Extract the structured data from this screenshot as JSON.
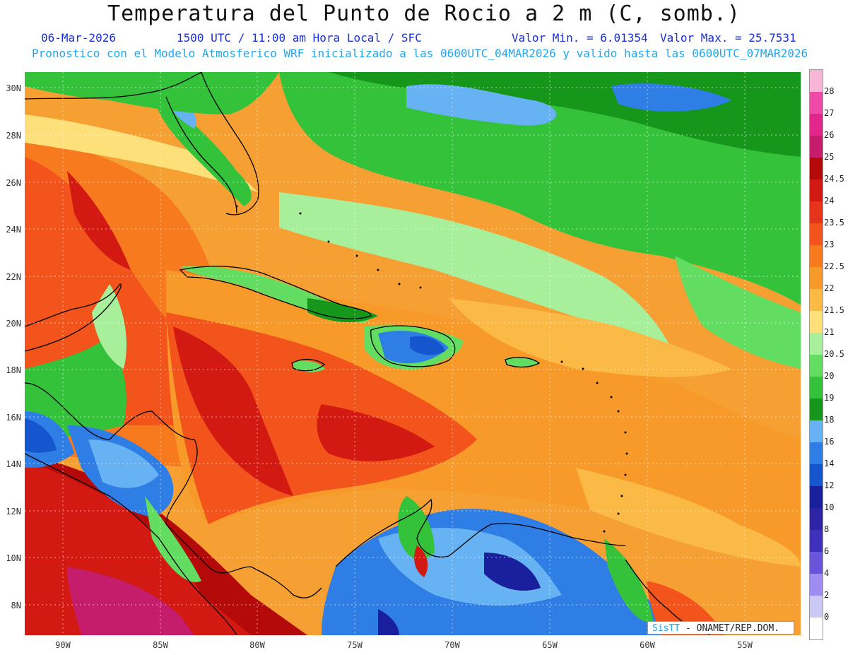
{
  "header": {
    "title": "Temperatura del Punto de Rocio a 2 m (C, somb.)",
    "date": "06-Mar-2026",
    "time_info": "1500 UTC / 11:00 am Hora Local / SFC",
    "valmin": "Valor Min. = 6.01354",
    "valmax": "Valor Max. = 25.7531",
    "model_info": "Pronostico con el Modelo Atmosferico WRF inicializado a las 0600UTC_04MAR2026 y valido hasta las  0600UTC_07MAR2026"
  },
  "axes": {
    "lat_labels": [
      "30N",
      "28N",
      "26N",
      "24N",
      "22N",
      "20N",
      "18N",
      "16N",
      "14N",
      "12N",
      "10N",
      "8N"
    ],
    "lon_labels": [
      "90W",
      "85W",
      "80W",
      "75W",
      "70W",
      "65W",
      "60W",
      "55W"
    ]
  },
  "colorbar": {
    "labels": [
      "28",
      "27",
      "26",
      "25",
      "24.5",
      "24",
      "23.5",
      "23",
      "22.5",
      "22",
      "21.5",
      "21",
      "20.5",
      "20",
      "19",
      "18",
      "16",
      "14",
      "12",
      "10",
      "8",
      "6",
      "4",
      "2",
      "0"
    ],
    "colors": [
      "#f7b6d6",
      "#ee4aa8",
      "#e3268a",
      "#c51c6b",
      "#b40a0a",
      "#d21a12",
      "#e6341a",
      "#f2541c",
      "#f77a1f",
      "#f89a2a",
      "#fbba45",
      "#fde07a",
      "#a7ef9a",
      "#62dd62",
      "#34c23a",
      "#16971c",
      "#66b2f2",
      "#2f7ee6",
      "#1556cf",
      "#1a1f9e",
      "#2d24a6",
      "#3f31bb",
      "#6a55d8",
      "#9e8cf0",
      "#ccc8f6",
      "#ffffff"
    ]
  },
  "map": {
    "region": "Caribbean / Gulf of Mexico / Central America"
  },
  "credit": {
    "logo": "SisTT",
    "text": " - ONAMET/REP.DOM."
  }
}
